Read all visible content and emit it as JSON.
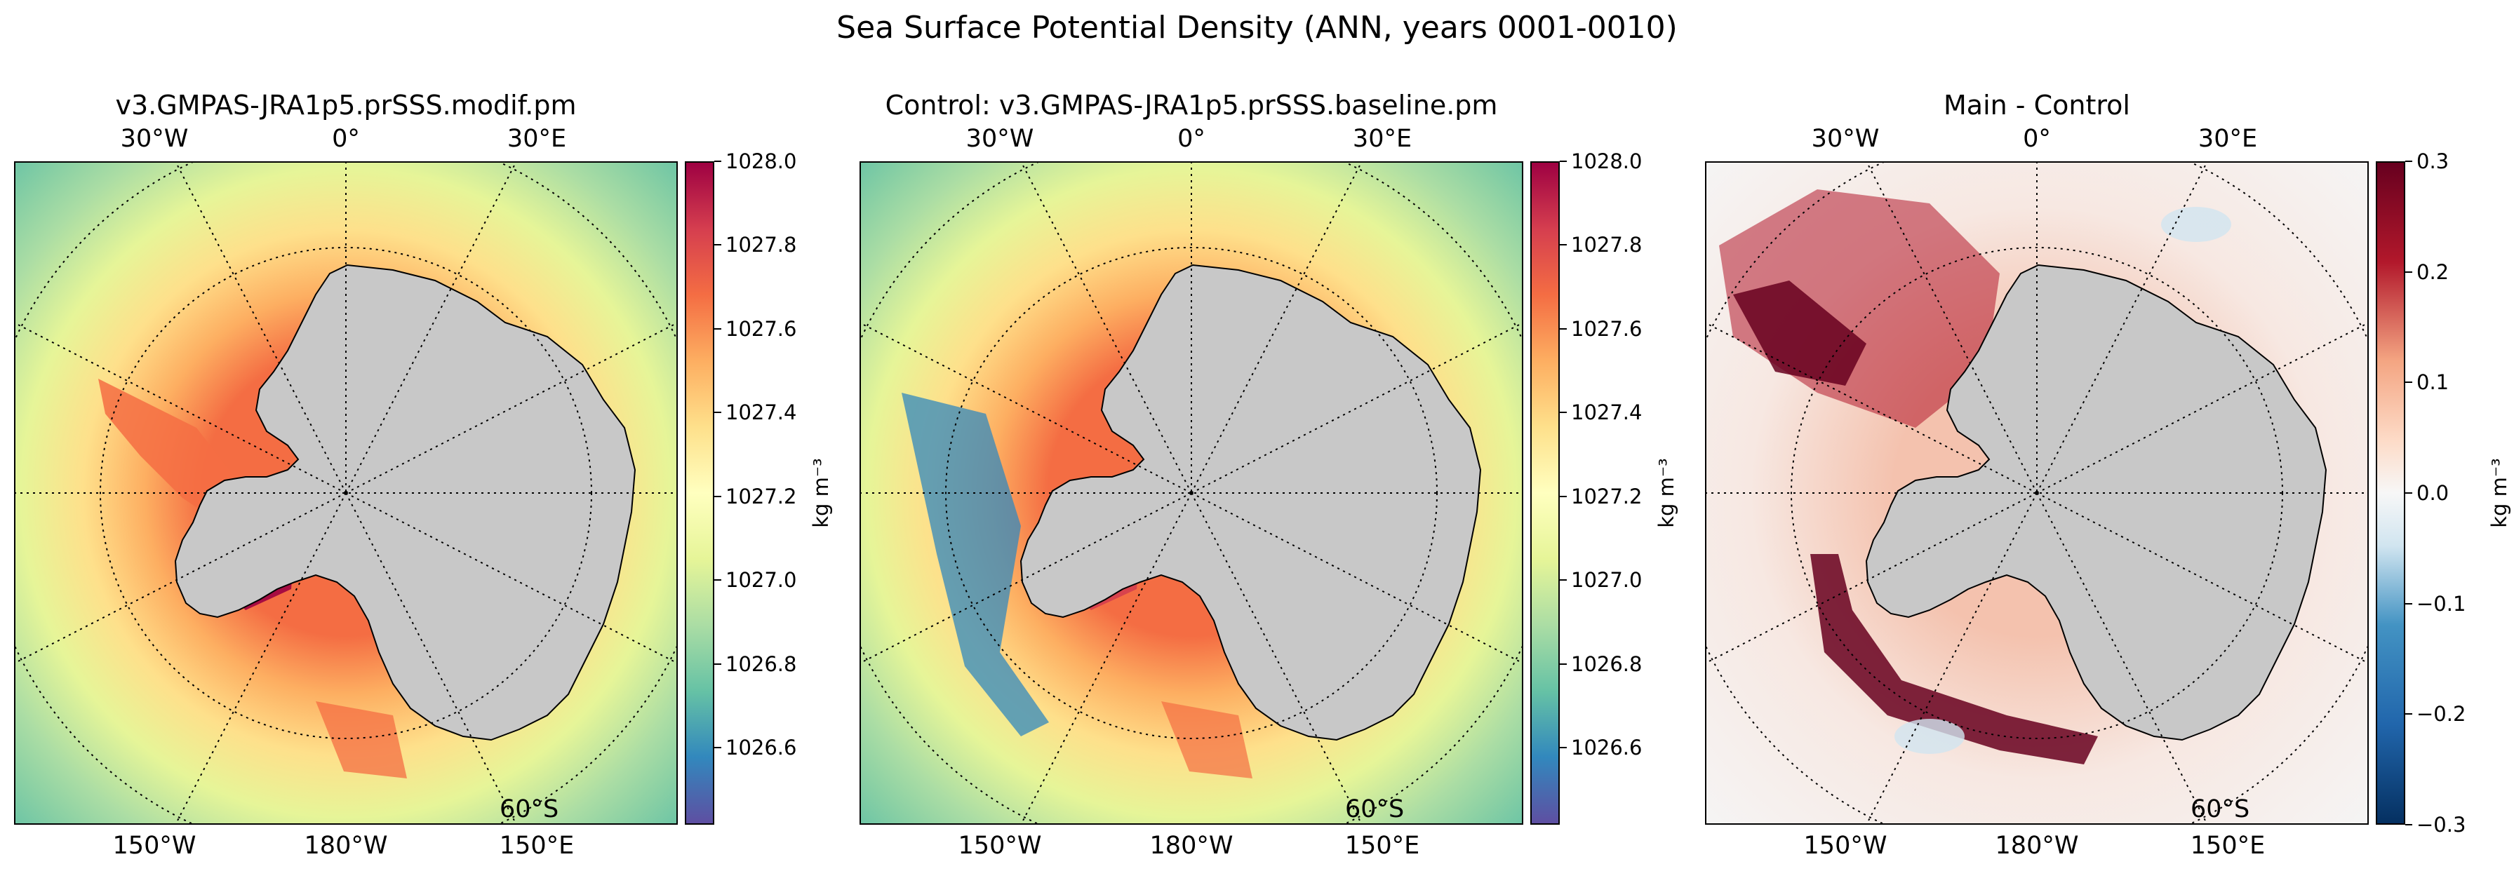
{
  "figure": {
    "title": "Sea Surface Potential Density (ANN, years 0001-0010)"
  },
  "panels": [
    {
      "title": "v3.GMPAS-JRA1p5.prSSS.modif.pm",
      "top_labels": [
        "30°W",
        "0°",
        "30°E"
      ],
      "bottom_labels": [
        "150°W",
        "180°W",
        "150°E"
      ],
      "lat_label": "60°S",
      "colorbar": {
        "unit": "kg m⁻³",
        "ticks": [
          "1028.0",
          "1027.8",
          "1027.6",
          "1027.4",
          "1027.2",
          "1027.0",
          "1026.8",
          "1026.6"
        ],
        "colormap": "Spectral_r"
      }
    },
    {
      "title": "Control: v3.GMPAS-JRA1p5.prSSS.baseline.pm",
      "top_labels": [
        "30°W",
        "0°",
        "30°E"
      ],
      "bottom_labels": [
        "150°W",
        "180°W",
        "150°E"
      ],
      "lat_label": "60°S",
      "colorbar": {
        "unit": "kg m⁻³",
        "ticks": [
          "1028.0",
          "1027.8",
          "1027.6",
          "1027.4",
          "1027.2",
          "1027.0",
          "1026.8",
          "1026.6"
        ],
        "colormap": "Spectral_r"
      }
    },
    {
      "title": "Main - Control",
      "top_labels": [
        "30°W",
        "0°",
        "30°E"
      ],
      "bottom_labels": [
        "150°W",
        "180°W",
        "150°E"
      ],
      "lat_label": "60°S",
      "colorbar": {
        "unit": "kg m⁻³",
        "ticks": [
          "0.3",
          "0.2",
          "0.1",
          "0.0",
          "−0.1",
          "−0.2",
          "−0.3"
        ],
        "colormap": "RdBu_r"
      }
    }
  ],
  "colors": {
    "land": "#c8c8c8",
    "spectral_low": "#5e4fa2",
    "spectral_high": "#9e0142",
    "diff_high": "#67001f",
    "diff_low": "#053061"
  }
}
